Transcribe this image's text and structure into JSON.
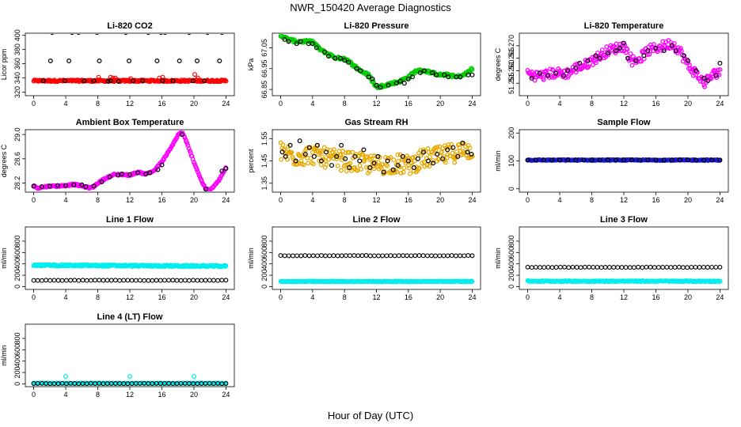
{
  "figure": {
    "title": "NWR_150420  Average Diagnostics",
    "xlabel": "Hour of Day (UTC)"
  },
  "colors": {
    "black": "#000000",
    "red": "#ff0000",
    "green": "#00cc00",
    "magenta": "#ff00ff",
    "orange": "#e8a800",
    "blue": "#1a1acc",
    "cyan": "#00eeee"
  },
  "chart_data": [
    {
      "type": "scatter",
      "title": "Li-820 CO2",
      "ylabel": "Licor ppm",
      "xlim": [
        0,
        24
      ],
      "ylim": [
        315,
        403
      ],
      "xticks": [
        0,
        4,
        8,
        12,
        16,
        20,
        24
      ],
      "yticks": [
        320,
        340,
        360,
        380,
        400
      ],
      "series": [
        {
          "color": "red",
          "style": "band",
          "x": [
            0,
            24
          ],
          "y": [
            336,
            336
          ],
          "noise": 1.2
        },
        {
          "color": "red",
          "style": "points",
          "x": [
            8.1,
            9.6,
            9.9,
            10.2,
            12.1,
            15.7,
            16.1,
            20.1,
            20.5
          ],
          "y": [
            341,
            341,
            340,
            340,
            339,
            340,
            341,
            345,
            340
          ]
        },
        {
          "color": "black",
          "style": "points",
          "x": [
            0.4,
            1.2,
            2.1,
            2.3,
            3.5,
            3.9,
            4.4,
            4.8,
            5.0,
            5.6,
            6.3,
            7.5,
            7.9,
            8.2,
            8.5,
            9.3,
            9.6,
            10.3,
            10.6,
            11.5,
            11.9,
            12.4,
            12.6,
            13.6,
            14.3,
            15.4,
            15.6,
            15.9,
            16.1,
            16.4,
            17.4,
            18.2,
            19.4,
            19.5,
            19.9,
            20.4,
            20.8,
            21.3,
            21.7,
            22.5,
            23.2,
            23.5,
            23.9
          ],
          "y": [
            308,
            336,
            364,
            404,
            309,
            336,
            364,
            404,
            308,
            404,
            336,
            336,
            404,
            364,
            309,
            335,
            336,
            309,
            335,
            404,
            364,
            336,
            309,
            336,
            404,
            364,
            309,
            404,
            336,
            404,
            336,
            364,
            404,
            309,
            336,
            364,
            308,
            336,
            404,
            309,
            364,
            404,
            308
          ]
        }
      ]
    },
    {
      "type": "scatter",
      "title": "Li-820 Pressure",
      "ylabel": "kPa",
      "xlim": [
        0,
        24
      ],
      "ylim": [
        66.82,
        67.12
      ],
      "xticks": [
        0,
        4,
        8,
        12,
        16,
        20,
        24
      ],
      "yticks": [
        66.85,
        66.95,
        67.05
      ],
      "yticklabels": [
        "66.85",
        "66.95",
        "67.05"
      ],
      "series": [
        {
          "color": "green",
          "style": "curve",
          "noise": 0.006,
          "x": [
            0,
            1,
            2,
            3,
            4,
            5,
            6,
            7,
            8,
            9,
            10,
            11,
            12,
            13,
            14,
            15,
            16,
            17,
            18,
            19,
            20,
            21,
            22,
            23,
            24
          ],
          "y": [
            67.11,
            67.09,
            67.08,
            67.08,
            67.08,
            67.04,
            67.02,
            67.0,
            67.0,
            66.97,
            66.94,
            66.92,
            66.86,
            66.87,
            66.88,
            66.89,
            66.91,
            66.94,
            66.94,
            66.93,
            66.92,
            66.92,
            66.91,
            66.92,
            66.95
          ]
        },
        {
          "color": "black",
          "style": "points",
          "x": [
            0.5,
            1.0,
            2.0,
            2.5,
            3.5,
            4.0,
            4.5,
            5.5,
            6.0,
            6.8,
            7.5,
            8.0,
            8.5,
            9.5,
            10.0,
            11.0,
            11.5,
            12.0,
            12.5,
            13.5,
            14.5,
            15.0,
            15.5,
            16.0,
            16.5,
            17.5,
            18.0,
            19.0,
            19.5,
            20.5,
            21.0,
            22.0,
            22.5,
            23.5,
            24.0
          ],
          "y": [
            67.09,
            67.08,
            67.07,
            67.08,
            67.07,
            67.07,
            67.05,
            67.03,
            67.01,
            67.0,
            67.0,
            66.99,
            66.98,
            66.95,
            66.94,
            66.91,
            66.9,
            66.87,
            66.86,
            66.87,
            66.88,
            66.89,
            66.88,
            66.9,
            66.91,
            66.93,
            66.94,
            66.93,
            66.92,
            66.92,
            66.91,
            66.91,
            66.91,
            66.92,
            66.92
          ]
        }
      ]
    },
    {
      "type": "scatter",
      "title": "Li-820 Temperature",
      "ylabel": "degrees C",
      "xlim": [
        0,
        24
      ],
      "ylim": [
        51.25,
        51.275
      ],
      "xticks": [
        0,
        4,
        8,
        12,
        16,
        20,
        24
      ],
      "yticks": [
        51.255,
        51.26,
        51.265,
        51.27
      ],
      "yticklabels": [
        "51.255",
        "51.260",
        "51.265",
        "51.270"
      ],
      "series": [
        {
          "color": "magenta",
          "style": "curve",
          "noise": 0.002,
          "x": [
            0,
            1,
            2,
            3,
            4,
            5,
            6,
            7,
            8,
            9,
            10,
            11,
            12,
            13,
            14,
            15,
            16,
            17,
            18,
            19,
            20,
            21,
            22,
            23,
            24
          ],
          "y": [
            51.259,
            51.258,
            51.258,
            51.259,
            51.259,
            51.259,
            51.261,
            51.262,
            51.264,
            51.266,
            51.268,
            51.269,
            51.27,
            51.264,
            51.265,
            51.268,
            51.269,
            51.27,
            51.271,
            51.268,
            51.262,
            51.259,
            51.255,
            51.258,
            51.26
          ]
        },
        {
          "color": "black",
          "style": "points",
          "x": [
            0.5,
            1.5,
            2.5,
            3.5,
            4.5,
            5.0,
            6.0,
            6.5,
            7.5,
            8.5,
            9.0,
            10.0,
            11.0,
            11.5,
            12.0,
            12.5,
            13.5,
            14.5,
            15.0,
            16.0,
            17.0,
            18.0,
            18.5,
            19.5,
            20.0,
            21.0,
            22.0,
            22.5,
            23.5,
            24.0
          ],
          "y": [
            51.257,
            51.259,
            51.258,
            51.259,
            51.258,
            51.26,
            51.261,
            51.263,
            51.264,
            51.266,
            51.265,
            51.267,
            51.268,
            51.269,
            51.271,
            51.265,
            51.264,
            51.266,
            51.268,
            51.269,
            51.268,
            51.27,
            51.268,
            51.266,
            51.264,
            51.26,
            51.257,
            51.256,
            51.258,
            51.263
          ]
        }
      ]
    },
    {
      "type": "scatter",
      "title": "Ambient Box Temperature",
      "ylabel": "degrees C",
      "xlim": [
        0,
        24
      ],
      "ylim": [
        28.05,
        29.08
      ],
      "xticks": [
        0,
        4,
        8,
        12,
        16,
        20,
        24
      ],
      "yticks": [
        28.2,
        28.6,
        29.0
      ],
      "yticklabels": [
        "28.2",
        "28.6",
        "29.0"
      ],
      "series": [
        {
          "color": "magenta",
          "style": "curve",
          "noise": 0.012,
          "x": [
            0,
            0.5,
            1,
            2,
            3,
            4,
            5,
            6,
            7,
            7.5,
            8,
            9,
            10,
            11,
            12,
            13,
            14,
            15,
            16,
            17,
            18,
            18.5,
            19,
            20,
            21,
            21.5,
            22,
            23,
            24
          ],
          "y": [
            28.15,
            28.12,
            28.13,
            28.15,
            28.15,
            28.16,
            28.18,
            28.15,
            28.12,
            28.14,
            28.2,
            28.28,
            28.34,
            28.34,
            28.33,
            28.38,
            28.35,
            28.4,
            28.55,
            28.75,
            28.99,
            29.05,
            28.9,
            28.55,
            28.22,
            28.1,
            28.08,
            28.22,
            28.45
          ]
        },
        {
          "color": "black",
          "style": "points",
          "x": [
            0.0,
            1.0,
            2.0,
            3.0,
            4.0,
            5.0,
            6.0,
            6.5,
            7.5,
            8.5,
            9.5,
            10.5,
            11.0,
            12.0,
            13.0,
            14.0,
            14.5,
            15.5,
            16.0,
            18.5,
            21.5,
            23.5,
            24.0
          ],
          "y": [
            28.15,
            28.14,
            28.15,
            28.16,
            28.16,
            28.17,
            28.17,
            28.14,
            28.15,
            28.22,
            28.3,
            28.33,
            28.35,
            28.34,
            28.37,
            28.35,
            28.37,
            28.42,
            28.5,
            29.0,
            28.1,
            28.4,
            28.44
          ]
        }
      ]
    },
    {
      "type": "scatter",
      "title": "Gas Stream RH",
      "ylabel": "percent",
      "xlim": [
        0,
        24
      ],
      "ylim": [
        1.31,
        1.59
      ],
      "xticks": [
        0,
        4,
        8,
        12,
        16,
        20,
        24
      ],
      "yticks": [
        1.35,
        1.45,
        1.55
      ],
      "yticklabels": [
        "1.35",
        "1.45",
        "1.55"
      ],
      "series": [
        {
          "color": "orange",
          "style": "band",
          "x": [
            0,
            2,
            4,
            6,
            8,
            10,
            12,
            14,
            16,
            18,
            20,
            22,
            24
          ],
          "y": [
            1.49,
            1.47,
            1.48,
            1.46,
            1.45,
            1.44,
            1.43,
            1.44,
            1.43,
            1.46,
            1.47,
            1.49,
            1.5
          ],
          "noise": 0.045
        },
        {
          "color": "black",
          "style": "points",
          "x": [
            0.2,
            0.6,
            1.2,
            1.9,
            2.4,
            3.1,
            3.6,
            4.2,
            4.6,
            5.1,
            5.7,
            6.4,
            7.0,
            7.6,
            8.1,
            8.6,
            9.3,
            9.9,
            10.4,
            11.2,
            11.7,
            12.2,
            12.9,
            13.4,
            14.1,
            14.7,
            15.3,
            16.0,
            16.7,
            17.2,
            17.9,
            18.5,
            19.1,
            19.6,
            20.3,
            20.9,
            21.6,
            22.2,
            22.8,
            23.4,
            23.9
          ],
          "y": [
            1.49,
            1.47,
            1.52,
            1.45,
            1.54,
            1.48,
            1.51,
            1.47,
            1.52,
            1.45,
            1.49,
            1.43,
            1.47,
            1.52,
            1.46,
            1.42,
            1.47,
            1.45,
            1.5,
            1.42,
            1.44,
            1.47,
            1.4,
            1.45,
            1.41,
            1.43,
            1.47,
            1.45,
            1.42,
            1.46,
            1.49,
            1.45,
            1.44,
            1.48,
            1.46,
            1.5,
            1.51,
            1.47,
            1.53,
            1.49,
            1.48
          ]
        }
      ]
    },
    {
      "type": "scatter",
      "title": "Sample Flow",
      "ylabel": "ml/min",
      "xlim": [
        0,
        24
      ],
      "ylim": [
        -12,
        212
      ],
      "xticks": [
        0,
        4,
        8,
        12,
        16,
        20,
        24
      ],
      "yticks": [
        0,
        100,
        200
      ],
      "series": [
        {
          "color": "blue",
          "style": "band",
          "x": [
            0,
            24
          ],
          "y": [
            103,
            103
          ],
          "noise": 1.5
        },
        {
          "color": "black",
          "style": "points",
          "x": [
            0,
            1,
            2,
            3,
            4,
            5,
            6,
            7,
            8,
            9,
            10,
            11,
            12,
            13,
            14,
            15,
            16,
            17,
            18,
            19,
            20,
            21,
            22,
            23,
            24
          ],
          "y": [
            103,
            103,
            103,
            103,
            103,
            103,
            103,
            103,
            103,
            103,
            103,
            103,
            103,
            103,
            103,
            103,
            103,
            103,
            103,
            103,
            103,
            103,
            103,
            103,
            103
          ]
        }
      ]
    },
    {
      "type": "scatter",
      "title": "Line 1 Flow",
      "ylabel": "ml/min",
      "xlim": [
        0,
        24
      ],
      "ylim": [
        -50,
        1050
      ],
      "xticks": [
        0,
        4,
        8,
        12,
        16,
        20,
        24
      ],
      "yticks": [
        0,
        200,
        400,
        600,
        800
      ],
      "series": [
        {
          "color": "cyan",
          "style": "band",
          "x": [
            0,
            24
          ],
          "y": [
            375,
            360
          ],
          "noise": 14
        },
        {
          "color": "black",
          "style": "ring-row",
          "x": [
            0,
            24
          ],
          "y": [
            110,
            110
          ],
          "count": 48
        }
      ]
    },
    {
      "type": "scatter",
      "title": "Line 2 Flow",
      "ylabel": "ml/min",
      "xlim": [
        0,
        24
      ],
      "ylim": [
        -50,
        1050
      ],
      "xticks": [
        0,
        4,
        8,
        12,
        16,
        20,
        24
      ],
      "yticks": [
        0,
        200,
        400,
        600,
        800
      ],
      "series": [
        {
          "color": "cyan",
          "style": "band",
          "x": [
            0,
            24
          ],
          "y": [
            90,
            90
          ],
          "noise": 6
        },
        {
          "color": "black",
          "style": "ring-row",
          "x": [
            0,
            24
          ],
          "y": [
            545,
            545
          ],
          "count": 48
        }
      ]
    },
    {
      "type": "scatter",
      "title": "Line 3 Flow",
      "ylabel": "ml/min",
      "xlim": [
        0,
        24
      ],
      "ylim": [
        -50,
        1050
      ],
      "xticks": [
        0,
        4,
        8,
        12,
        16,
        20,
        24
      ],
      "yticks": [
        0,
        200,
        400,
        600,
        800
      ],
      "series": [
        {
          "color": "cyan",
          "style": "band",
          "x": [
            0,
            24
          ],
          "y": [
            95,
            95
          ],
          "noise": 8
        },
        {
          "color": "black",
          "style": "ring-row",
          "x": [
            0,
            24
          ],
          "y": [
            340,
            340
          ],
          "count": 48
        }
      ]
    },
    {
      "type": "scatter",
      "title": "Line 4 (LT) Flow",
      "ylabel": "ml/min",
      "xlim": [
        0,
        24
      ],
      "ylim": [
        -50,
        1050
      ],
      "xticks": [
        0,
        4,
        8,
        12,
        16,
        20,
        24
      ],
      "yticks": [
        0,
        200,
        400,
        600,
        800
      ],
      "series": [
        {
          "color": "cyan",
          "style": "band",
          "x": [
            0,
            24
          ],
          "y": [
            10,
            10
          ],
          "noise": 3
        },
        {
          "color": "cyan",
          "style": "points",
          "x": [
            0,
            4,
            12,
            20
          ],
          "y": [
            10,
            130,
            130,
            130
          ]
        },
        {
          "color": "black",
          "style": "ring-row",
          "x": [
            0,
            24
          ],
          "y": [
            5,
            5
          ],
          "count": 48
        }
      ]
    }
  ]
}
